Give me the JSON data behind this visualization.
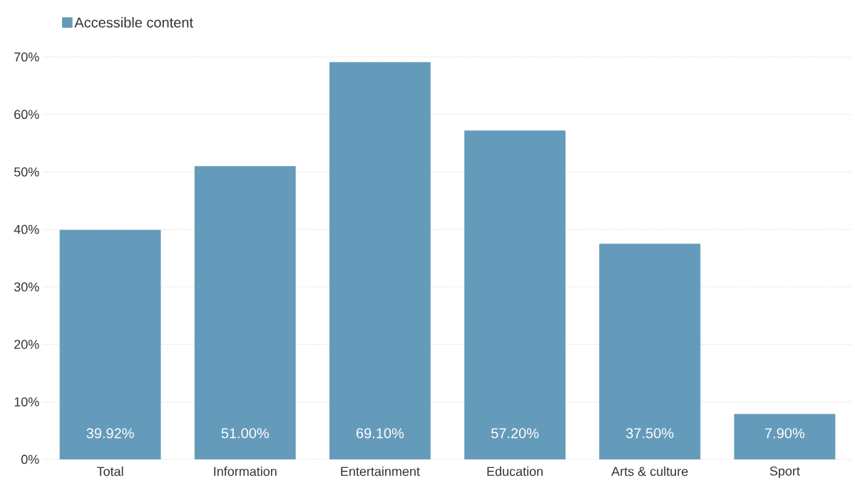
{
  "chart_data": {
    "type": "bar",
    "categories": [
      "Total",
      "Information",
      "Entertainment",
      "Education",
      "Arts & culture",
      "Sport"
    ],
    "series": [
      {
        "name": "Accessible content",
        "color": "#659bba",
        "values": [
          39.92,
          51.0,
          69.1,
          57.2,
          37.5,
          7.9
        ],
        "value_labels": [
          "39.92%",
          "51.00%",
          "69.10%",
          "57.20%",
          "37.50%",
          "7.90%"
        ]
      }
    ],
    "ylim": [
      0,
      70
    ],
    "yticks": [
      {
        "value": 0,
        "label": "0%"
      },
      {
        "value": 10,
        "label": "10%"
      },
      {
        "value": 20,
        "label": "20%"
      },
      {
        "value": 30,
        "label": "30%"
      },
      {
        "value": 40,
        "label": "40%"
      },
      {
        "value": 50,
        "label": "50%"
      },
      {
        "value": 60,
        "label": "60%"
      },
      {
        "value": 70,
        "label": "70%"
      }
    ],
    "grid": "y",
    "legend": "top left"
  }
}
